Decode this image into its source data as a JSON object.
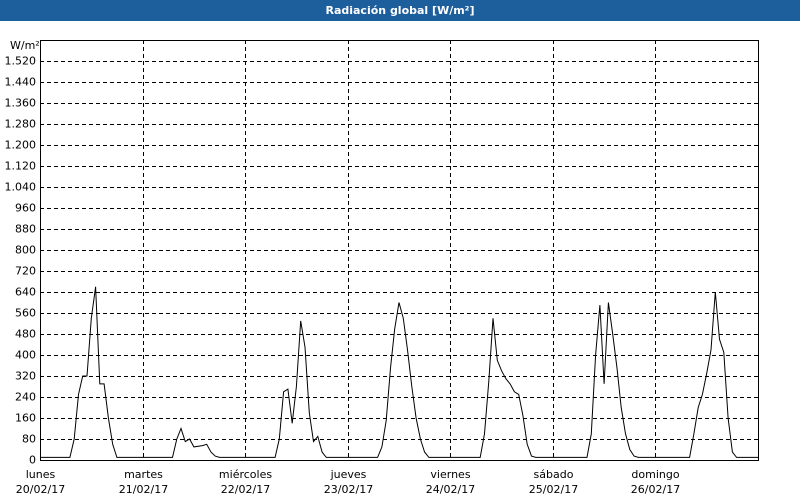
{
  "chart_data": {
    "type": "line",
    "title": "Radiación global [W/m²]",
    "y_label": "W/m²",
    "color": "#000000",
    "grid": true,
    "xlim": [
      0,
      168
    ],
    "ylim": [
      0,
      1600
    ],
    "xticks": [
      {
        "value": 0,
        "label": "lunes"
      },
      {
        "value": 24,
        "label": "martes"
      },
      {
        "value": 48,
        "label": "miércoles"
      },
      {
        "value": 72,
        "label": "jueves"
      },
      {
        "value": 96,
        "label": "viernes"
      },
      {
        "value": 120,
        "label": "sábado"
      },
      {
        "value": 144,
        "label": "domingo"
      }
    ],
    "xtick_dates": [
      "20/02/17",
      "21/02/17",
      "22/02/17",
      "23/02/17",
      "24/02/17",
      "25/02/17",
      "26/02/17"
    ],
    "yticks": [
      0,
      80,
      160,
      240,
      320,
      400,
      480,
      560,
      640,
      720,
      800,
      880,
      960,
      {
        "value": 1040,
        "label": "1.040"
      },
      {
        "value": 1120,
        "label": "1.120"
      },
      {
        "value": 1200,
        "label": "1.200"
      },
      {
        "value": 1280,
        "label": "1.280"
      },
      {
        "value": 1360,
        "label": "1.360"
      },
      {
        "value": 1440,
        "label": "1.440"
      },
      {
        "value": 1520,
        "label": "1.520"
      }
    ],
    "x": [
      0,
      7,
      8,
      9,
      10,
      11,
      12,
      13,
      14,
      15,
      16,
      17,
      18,
      31,
      32,
      33,
      34,
      35,
      36,
      38,
      39,
      40,
      41,
      42,
      55,
      56,
      57,
      58,
      59,
      60,
      61,
      62,
      63,
      64,
      65,
      66,
      67,
      79,
      80,
      81,
      82,
      83,
      84,
      85,
      86,
      87,
      88,
      89,
      90,
      91,
      103,
      104,
      105,
      106,
      107,
      108,
      109,
      110,
      111,
      112,
      113,
      114,
      115,
      116,
      128,
      129,
      130,
      131,
      132,
      133,
      134,
      135,
      136,
      137,
      138,
      139,
      140,
      152,
      153,
      154,
      155,
      156,
      157,
      158,
      159,
      160,
      161,
      162,
      163,
      168
    ],
    "values": [
      10,
      10,
      80,
      250,
      320,
      320,
      540,
      660,
      290,
      290,
      160,
      60,
      10,
      10,
      80,
      120,
      70,
      80,
      50,
      55,
      60,
      30,
      15,
      10,
      10,
      80,
      260,
      270,
      140,
      280,
      530,
      430,
      180,
      70,
      90,
      30,
      10,
      10,
      50,
      150,
      350,
      500,
      600,
      540,
      420,
      280,
      160,
      80,
      30,
      10,
      10,
      100,
      300,
      540,
      380,
      340,
      310,
      290,
      260,
      250,
      170,
      60,
      15,
      10,
      10,
      100,
      400,
      590,
      290,
      600,
      480,
      350,
      200,
      100,
      40,
      15,
      10,
      10,
      100,
      200,
      250,
      330,
      420,
      640,
      460,
      410,
      160,
      30,
      10,
      10
    ]
  }
}
